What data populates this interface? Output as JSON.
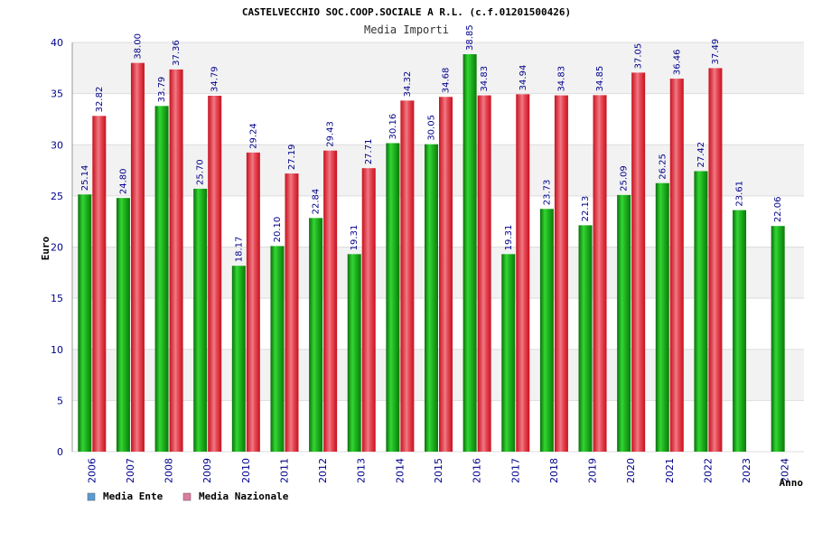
{
  "chart_data": {
    "type": "bar",
    "title": "CASTELVECCHIO SOC.COOP.SOCIALE A R.L. (c.f.01201500426)",
    "subtitle": "Media Importi",
    "xlabel": "Anno",
    "ylabel": "Euro",
    "ylim": [
      0,
      40
    ],
    "yticks": [
      0,
      5,
      10,
      15,
      20,
      25,
      30,
      35,
      40
    ],
    "categories": [
      "2006",
      "2007",
      "2008",
      "2009",
      "2010",
      "2011",
      "2012",
      "2013",
      "2014",
      "2015",
      "2016",
      "2017",
      "2018",
      "2019",
      "2020",
      "2021",
      "2022",
      "2023",
      "2024"
    ],
    "series": [
      {
        "name": "Media Ente",
        "values": [
          25.14,
          24.8,
          33.79,
          25.7,
          18.17,
          20.1,
          22.84,
          19.31,
          30.16,
          30.05,
          38.85,
          19.31,
          23.73,
          22.13,
          25.09,
          26.25,
          27.42,
          23.61,
          22.06
        ],
        "labels": [
          "25.14",
          "24.80",
          "33.79",
          "25.70",
          "18.17",
          "20.10",
          "22.84",
          "19.31",
          "30.16",
          "30.05",
          "38.85",
          "19.31",
          "23.73",
          "22.13",
          "25.09",
          "26.25",
          "27.42",
          "23.61",
          "22.06"
        ],
        "color": "#1aa01a",
        "legend_color": "#5b9bd5"
      },
      {
        "name": "Media Nazionale",
        "values": [
          32.82,
          38.0,
          37.36,
          34.79,
          29.24,
          27.19,
          29.43,
          27.71,
          34.32,
          34.68,
          34.83,
          34.94,
          34.83,
          34.85,
          37.05,
          36.46,
          37.49,
          null,
          null
        ],
        "labels": [
          "32.82",
          "38.00",
          "37.36",
          "34.79",
          "29.24",
          "27.19",
          "29.43",
          "27.71",
          "34.32",
          "34.68",
          "34.83",
          "34.94",
          "34.83",
          "34.85",
          "37.05",
          "36.46",
          "37.49",
          "",
          ""
        ],
        "color": "#dc1e2d",
        "legend_color": "#e07aa0"
      }
    ],
    "grid": true,
    "legend_position": "bottom-left"
  }
}
